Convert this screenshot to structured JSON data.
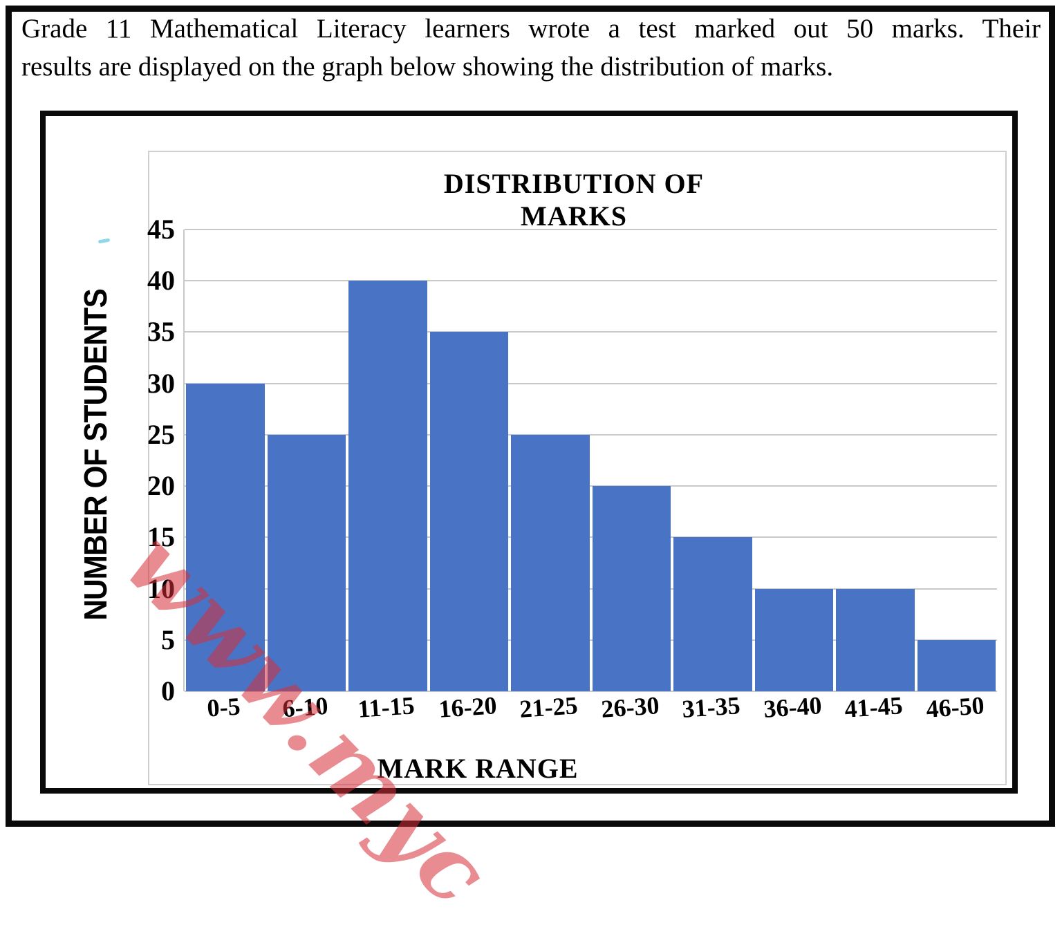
{
  "intro": {
    "line1": "Grade 11 Mathematical Literacy learners wrote a test marked out 50 marks. Their",
    "line2": "results are displayed on the graph below showing the distribution of marks."
  },
  "chart_data": {
    "type": "bar",
    "title": "DISTRIBUTION OF MARKS",
    "xlabel": "MARK RANGE",
    "ylabel": "NUMBER OF STUDENTS",
    "categories": [
      "0-5",
      "6-10",
      "11-15",
      "16-20",
      "21-25",
      "26-30",
      "31-35",
      "36-40",
      "41-45",
      "46-50"
    ],
    "values": [
      30,
      25,
      40,
      35,
      25,
      20,
      15,
      10,
      10,
      5
    ],
    "ylim": [
      0,
      45
    ],
    "ytick_step": 5,
    "yticks": [
      0,
      5,
      10,
      15,
      20,
      25,
      30,
      35,
      40,
      45
    ],
    "grid": "horizontal",
    "legend": "none",
    "bar_color": "#4973c4",
    "gridline_color": "#c9c9c9"
  },
  "watermark": {
    "text": "www.myc"
  }
}
